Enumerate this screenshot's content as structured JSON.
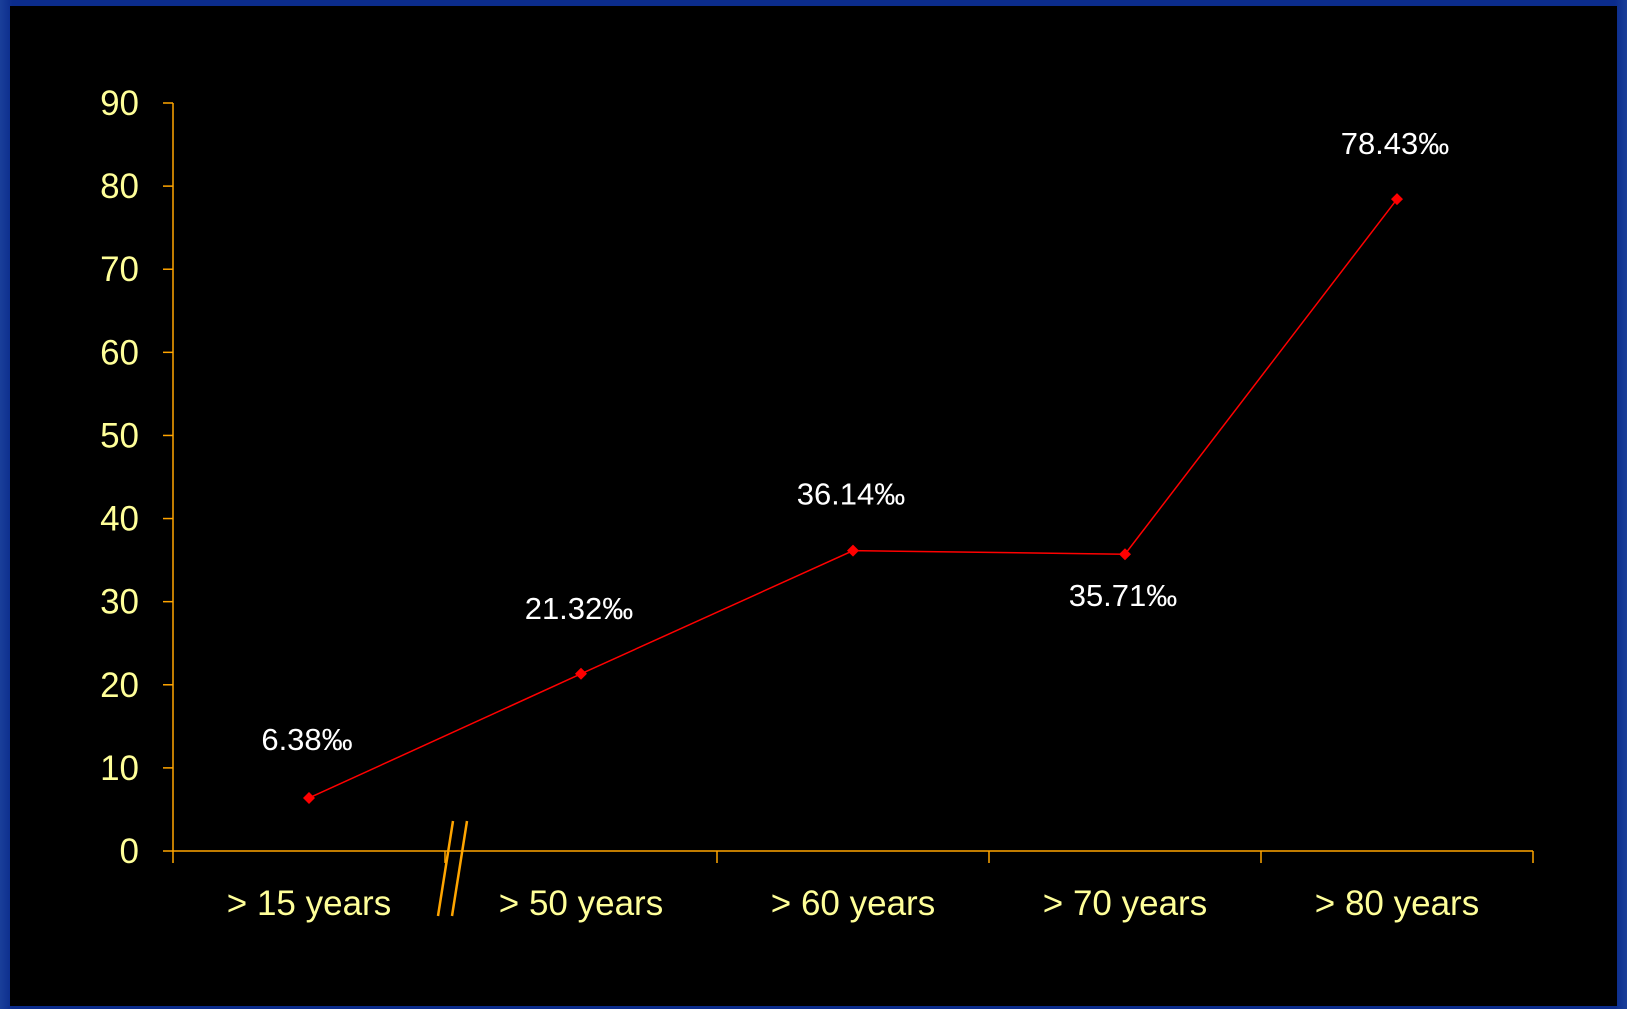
{
  "chart_data": {
    "type": "line",
    "categories": [
      "> 15 years",
      "> 50 years",
      "> 60 years",
      "> 70 years",
      "> 80 years"
    ],
    "values": [
      6.38,
      21.32,
      36.14,
      35.71,
      78.43
    ],
    "data_labels": [
      "6.38‰",
      "21.32‰",
      "36.14‰",
      "35.71‰",
      "78.43‰"
    ],
    "ylim": [
      0,
      90
    ],
    "yticks": [
      "0",
      "10",
      "20",
      "30",
      "40",
      "50",
      "60",
      "70",
      "80",
      "90"
    ],
    "title": "",
    "xlabel": "",
    "ylabel": "",
    "axis_break": "between > 15 years and > 50 years",
    "grid": false,
    "legend": "none",
    "colors": {
      "background": "#000000",
      "border": "#0b2c8c",
      "axis": "#ffa500",
      "tick_labels": "#ffff99",
      "series": "#ff0000",
      "data_labels": "#ffffff"
    }
  }
}
